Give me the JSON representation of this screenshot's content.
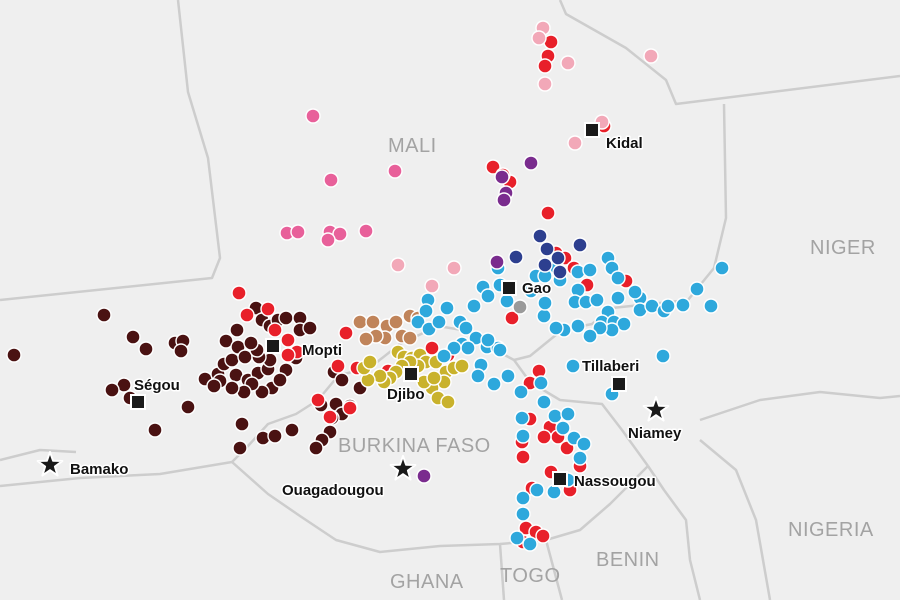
{
  "map": {
    "countries": [
      {
        "name": "MALI",
        "id": "mali"
      },
      {
        "name": "NIGER",
        "id": "niger"
      },
      {
        "name": "BURKINA FASO",
        "id": "burkina-faso"
      },
      {
        "name": "NIGERIA",
        "id": "nigeria"
      },
      {
        "name": "BENIN",
        "id": "benin"
      },
      {
        "name": "GHANA",
        "id": "ghana"
      },
      {
        "name": "TOGO",
        "id": "togo"
      }
    ],
    "cities": [
      {
        "name": "Kidal",
        "id": "kidal",
        "marker": "square"
      },
      {
        "name": "Gao",
        "id": "gao",
        "marker": "square"
      },
      {
        "name": "Mopti",
        "id": "mopti",
        "marker": "square"
      },
      {
        "name": "Ségou",
        "id": "segou",
        "marker": "square"
      },
      {
        "name": "Djibo",
        "id": "djibo",
        "marker": "square"
      },
      {
        "name": "Tillaberi",
        "id": "tillaberi",
        "marker": "square"
      },
      {
        "name": "Nassougou",
        "id": "nassougou",
        "marker": "square"
      },
      {
        "name": "Bamako",
        "id": "bamako",
        "marker": "star"
      },
      {
        "name": "Ouagadougou",
        "id": "ouagadougou",
        "marker": "star"
      },
      {
        "name": "Niamey",
        "id": "niamey",
        "marker": "star"
      }
    ],
    "colors": {
      "land": "#efefef",
      "border": "#cdcdcd",
      "country_label": "#a3a3a3",
      "marker": "#1a1a1a",
      "halo": "#ffffff",
      "dot_outline": "#ffffff"
    },
    "event_groups": [
      {
        "id": "dark-maroon",
        "color": "#4a1212"
      },
      {
        "id": "red",
        "color": "#e8202a"
      },
      {
        "id": "pink",
        "color": "#e8609a"
      },
      {
        "id": "light-pink",
        "color": "#f2a8b8"
      },
      {
        "id": "tan",
        "color": "#c0845a"
      },
      {
        "id": "olive",
        "color": "#c9b22c"
      },
      {
        "id": "sky-blue",
        "color": "#2ea8dc"
      },
      {
        "id": "navy",
        "color": "#2d3f8f"
      },
      {
        "id": "purple",
        "color": "#7a2c8e"
      },
      {
        "id": "grey",
        "color": "#9a9a9a"
      }
    ]
  }
}
